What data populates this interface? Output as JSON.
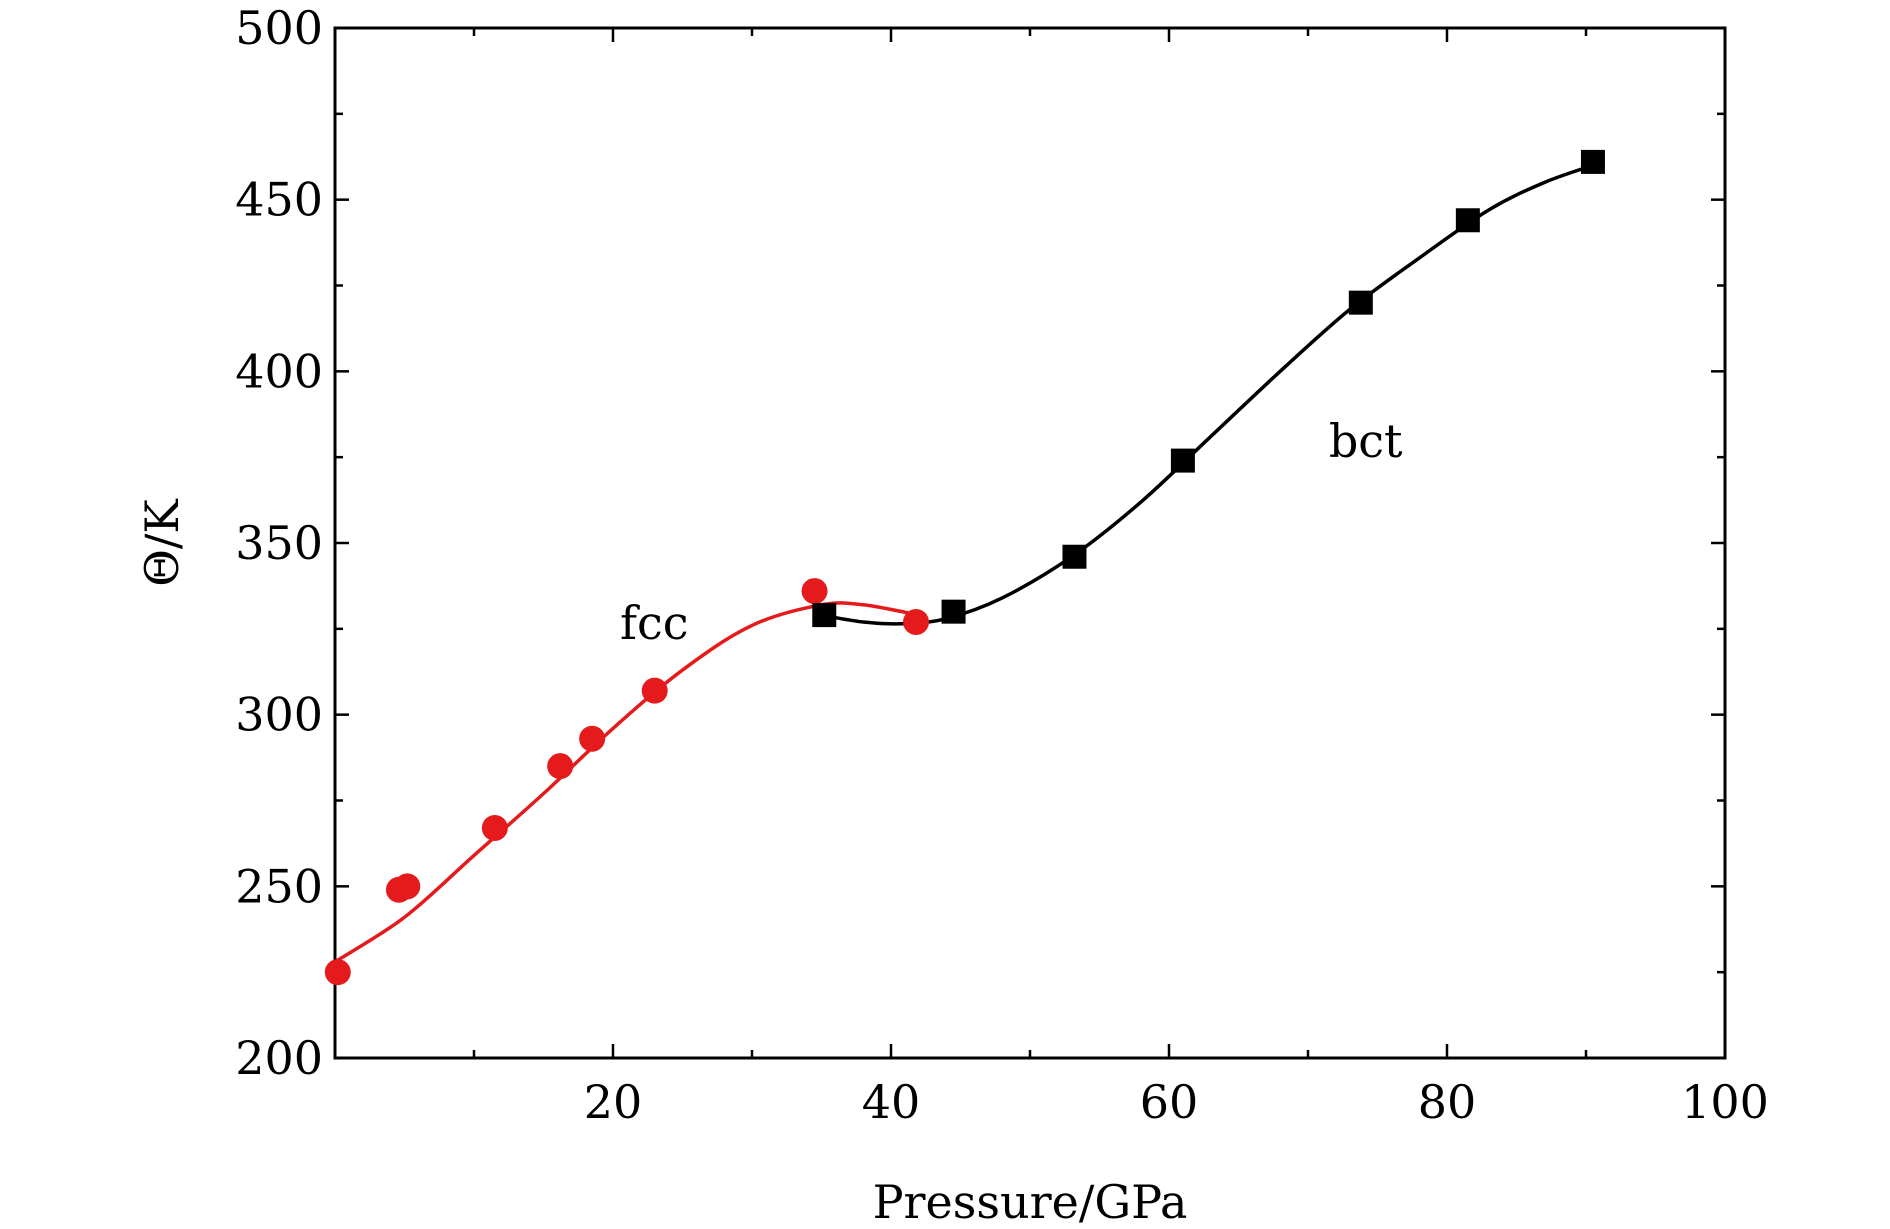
{
  "chart_data": {
    "type": "line",
    "xlabel": "Pressure/GPa",
    "ylabel": "Θ/K",
    "xlim": [
      0,
      100
    ],
    "ylim": [
      200,
      500
    ],
    "xticks": [
      20,
      40,
      60,
      80,
      100
    ],
    "yticks": [
      200,
      250,
      300,
      350,
      400,
      450,
      500
    ],
    "grid": false,
    "annotations": [
      {
        "text": "fcc",
        "x": 20.5,
        "y": 322
      },
      {
        "text": "bct",
        "x": 71.5,
        "y": 375
      }
    ],
    "series": [
      {
        "label": "fcc",
        "color": "#e41a1c",
        "marker": "circle",
        "points": [
          {
            "x": 0.2,
            "y": 225
          },
          {
            "x": 4.6,
            "y": 249
          },
          {
            "x": 5.2,
            "y": 250
          },
          {
            "x": 11.5,
            "y": 267
          },
          {
            "x": 16.2,
            "y": 285
          },
          {
            "x": 18.5,
            "y": 293
          },
          {
            "x": 23.0,
            "y": 307
          },
          {
            "x": 34.5,
            "y": 336
          },
          {
            "x": 41.8,
            "y": 327
          }
        ],
        "curve": [
          {
            "x": 0,
            "y": 228
          },
          {
            "x": 5,
            "y": 241
          },
          {
            "x": 10,
            "y": 259
          },
          {
            "x": 15,
            "y": 277
          },
          {
            "x": 20,
            "y": 296
          },
          {
            "x": 25,
            "y": 313
          },
          {
            "x": 30,
            "y": 326
          },
          {
            "x": 35,
            "y": 332
          },
          {
            "x": 38,
            "y": 332
          },
          {
            "x": 42,
            "y": 329
          }
        ]
      },
      {
        "label": "bct",
        "color": "#000000",
        "marker": "square",
        "points": [
          {
            "x": 35.2,
            "y": 329
          },
          {
            "x": 44.5,
            "y": 330
          },
          {
            "x": 53.2,
            "y": 346
          },
          {
            "x": 61.0,
            "y": 374
          },
          {
            "x": 73.8,
            "y": 420
          },
          {
            "x": 81.5,
            "y": 444
          },
          {
            "x": 90.5,
            "y": 461
          }
        ],
        "curve": [
          {
            "x": 35,
            "y": 329
          },
          {
            "x": 38,
            "y": 327
          },
          {
            "x": 41,
            "y": 326.5
          },
          {
            "x": 44,
            "y": 328
          },
          {
            "x": 48,
            "y": 334
          },
          {
            "x": 53,
            "y": 346
          },
          {
            "x": 58,
            "y": 362
          },
          {
            "x": 63,
            "y": 381
          },
          {
            "x": 68,
            "y": 400
          },
          {
            "x": 73,
            "y": 418
          },
          {
            "x": 78,
            "y": 433
          },
          {
            "x": 83,
            "y": 447
          },
          {
            "x": 87,
            "y": 455
          },
          {
            "x": 90.5,
            "y": 460
          }
        ]
      }
    ]
  }
}
